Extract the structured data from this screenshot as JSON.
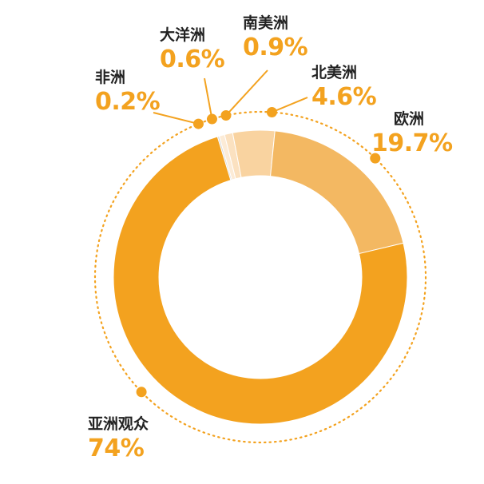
{
  "chart_data": {
    "type": "pie",
    "variant": "donut",
    "title": "",
    "slices": [
      {
        "label": "非洲",
        "value": 0.2,
        "display": "0.2%",
        "color": "#D8D8D8"
      },
      {
        "label": "大洋洲",
        "value": 0.6,
        "display": "0.6%",
        "color": "#FCEBD6"
      },
      {
        "label": "南美洲",
        "value": 0.9,
        "display": "0.9%",
        "color": "#FBE1C0"
      },
      {
        "label": "北美洲",
        "value": 4.6,
        "display": "4.6%",
        "color": "#F9D3A0"
      },
      {
        "label": "欧洲",
        "value": 19.7,
        "display": "19.7%",
        "color": "#F3B862"
      },
      {
        "label": "亚洲观众",
        "value": 74,
        "display": "74%",
        "color": "#F3A21F"
      }
    ],
    "accent_color": "#F3A21F"
  }
}
